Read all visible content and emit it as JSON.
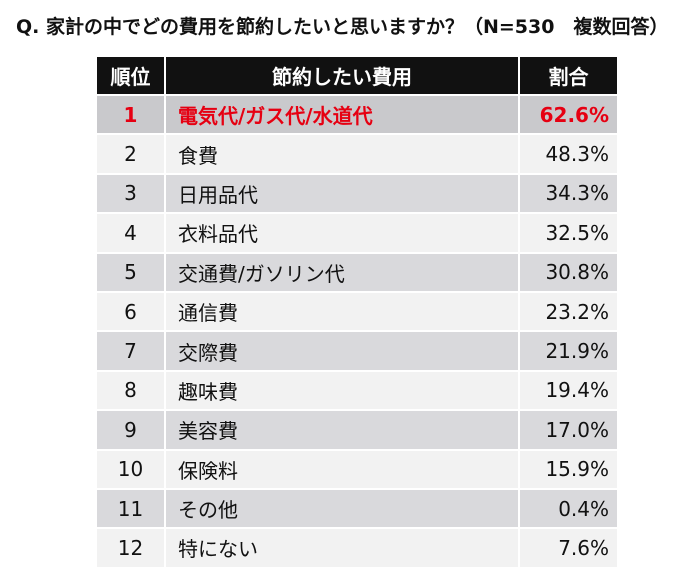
{
  "question": "Q. 家計の中でどの費用を節約したいと思いますか？（N=530　複数回答）",
  "colors": {
    "header_bg": "#111111",
    "highlight_text": "#e60012",
    "row_shade": "#d9d9dc",
    "row_plain": "#f2f2f2"
  },
  "chart_data": {
    "type": "table",
    "title": "Q. 家計の中でどの費用を節約したいと思いますか？（N=530　複数回答）",
    "columns": [
      "順位",
      "節約したい費用",
      "割合"
    ],
    "rows": [
      {
        "rank": "1",
        "item": "電気代/ガス代/水道代",
        "pct": "62.6%",
        "value": 62.6
      },
      {
        "rank": "2",
        "item": "食費",
        "pct": "48.3%",
        "value": 48.3
      },
      {
        "rank": "3",
        "item": "日用品代",
        "pct": "34.3%",
        "value": 34.3
      },
      {
        "rank": "4",
        "item": "衣料品代",
        "pct": "32.5%",
        "value": 32.5
      },
      {
        "rank": "5",
        "item": "交通費/ガソリン代",
        "pct": "30.8%",
        "value": 30.8
      },
      {
        "rank": "6",
        "item": "通信費",
        "pct": "23.2%",
        "value": 23.2
      },
      {
        "rank": "7",
        "item": "交際費",
        "pct": "21.9%",
        "value": 21.9
      },
      {
        "rank": "8",
        "item": "趣味費",
        "pct": "19.4%",
        "value": 19.4
      },
      {
        "rank": "9",
        "item": "美容費",
        "pct": "17.0%",
        "value": 17.0
      },
      {
        "rank": "10",
        "item": "保険料",
        "pct": "15.9%",
        "value": 15.9
      },
      {
        "rank": "11",
        "item": "その他",
        "pct": "0.4%",
        "value": 0.4
      },
      {
        "rank": "12",
        "item": "特にない",
        "pct": "7.6%",
        "value": 7.6
      }
    ]
  }
}
